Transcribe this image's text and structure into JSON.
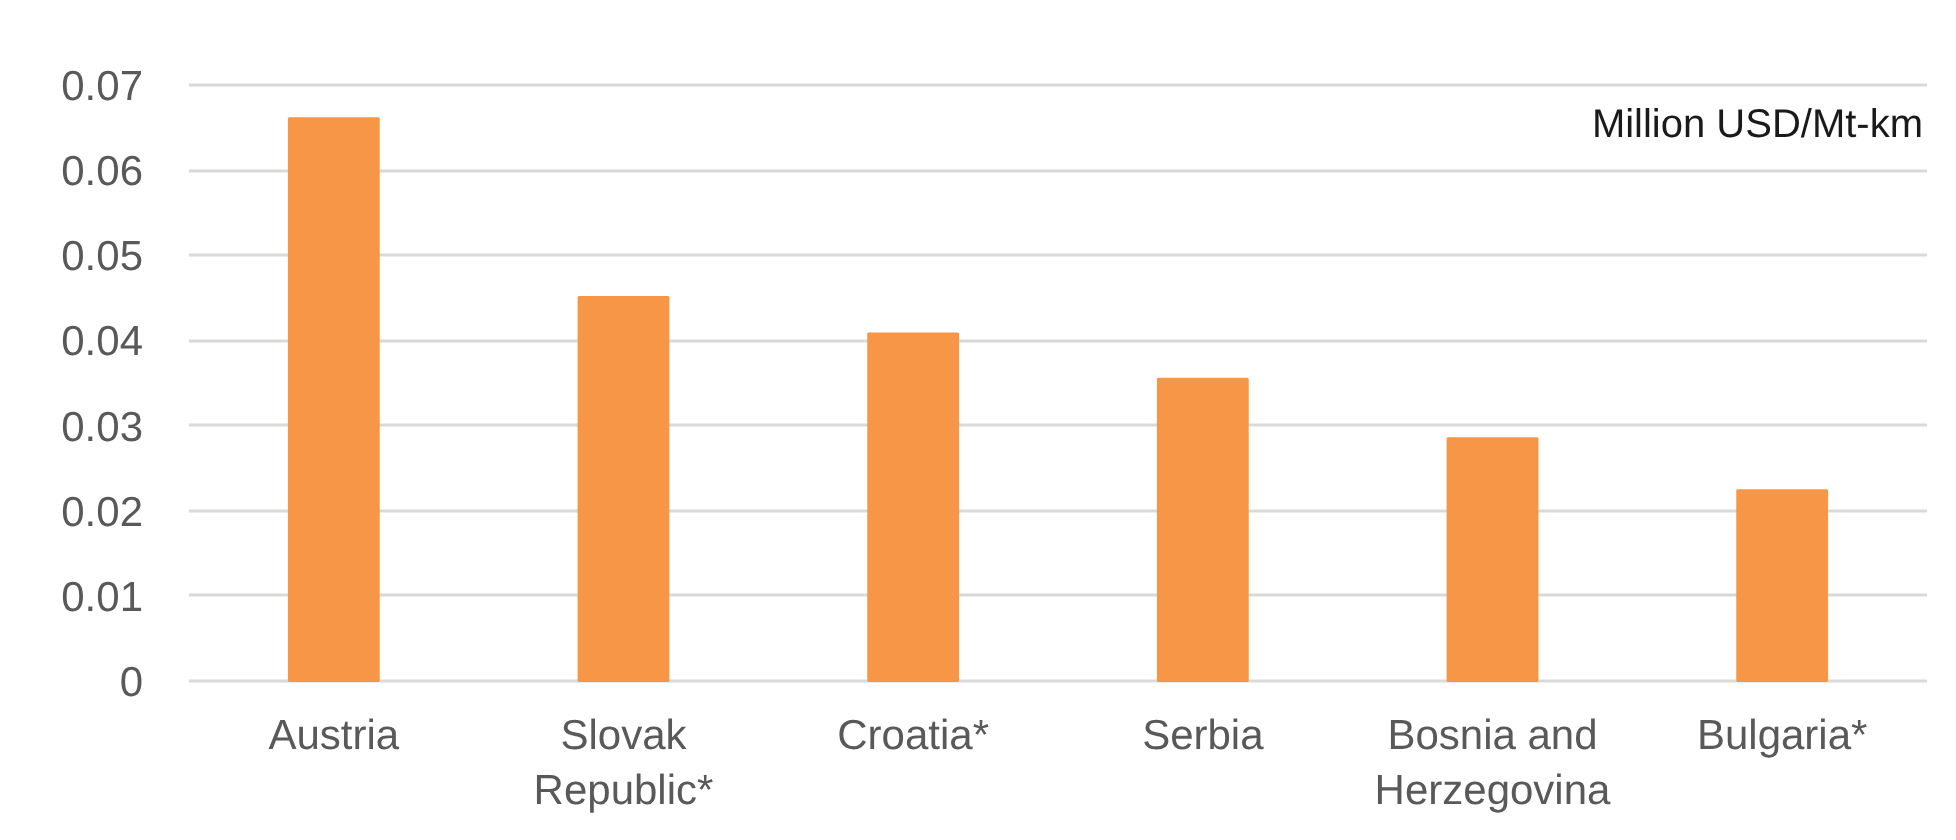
{
  "chart_data": {
    "type": "bar",
    "categories": [
      "Austria",
      "Slovak Republic*",
      "Croatia*",
      "Serbia",
      "Bosnia and Herzegovina",
      "Bulgaria*"
    ],
    "values": [
      0.0661,
      0.0451,
      0.0408,
      0.0355,
      0.0285,
      0.0224
    ],
    "color": "#f79646",
    "ylim": [
      0,
      0.07
    ],
    "yticks": [
      0,
      0.01,
      0.02,
      0.03,
      0.04,
      0.05,
      0.06,
      0.07
    ],
    "grid": "y",
    "annotations": [
      "Million USD/Mt-km"
    ]
  }
}
